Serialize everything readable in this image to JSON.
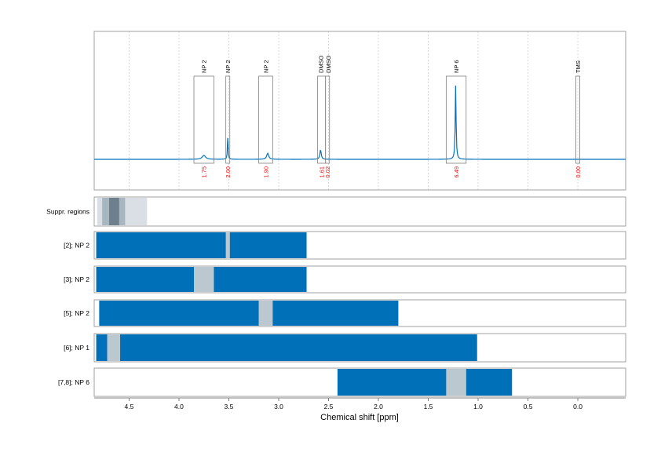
{
  "chart_data": {
    "type": "nmr-spectrum-with-range-bars",
    "xlabel": "Chemical shift [ppm]",
    "x_reversed": true,
    "xlim": [
      4.85,
      -0.48
    ],
    "xticks": [
      "4.5",
      "4.0",
      "3.5",
      "3.0",
      "2.5",
      "2.0",
      "1.5",
      "1.0",
      "0.5",
      "0.0"
    ],
    "xtick_values": [
      4.5,
      4.0,
      3.5,
      3.0,
      2.5,
      2.0,
      1.5,
      1.0,
      0.5,
      0.0
    ],
    "grid": "vertical-dotted",
    "colors": {
      "spectrum": "#0072BD",
      "bar": "#0070B8",
      "gap": "#BCC8D0",
      "integral": "#FF0000",
      "box": "#808080",
      "suppr_light": "#D9DFE5",
      "suppr_mid": "#A8B6C0",
      "suppr_dark": "#6E808E"
    },
    "peaks": [
      {
        "label": "NP 2",
        "ppm": 3.75,
        "height": 0.045,
        "width": 0.02,
        "integral": "1.75",
        "box": [
          3.85,
          3.65
        ]
      },
      {
        "label": "NP 2",
        "ppm": 3.51,
        "height": 0.28,
        "width": 0.004,
        "integral": "2.00",
        "box": [
          3.53,
          3.49
        ]
      },
      {
        "label": "NP 2",
        "ppm": 3.11,
        "height": 0.07,
        "width": 0.012,
        "integral": "1.90",
        "box": [
          3.2,
          3.06
        ]
      },
      {
        "label": "DMSO",
        "ppm": 2.58,
        "height": 0.11,
        "width": 0.008,
        "integral": "1.61",
        "box": [
          2.61,
          2.53
        ]
      },
      {
        "label": "DMSO",
        "ppm": 2.52,
        "height": 0.0,
        "width": 0.005,
        "integral": "0.02",
        "box": [
          2.53,
          2.49
        ]
      },
      {
        "label": "NP 6",
        "ppm": 1.225,
        "height": 0.85,
        "width": 0.005,
        "integral": "6.49",
        "box": [
          1.32,
          1.12
        ]
      },
      {
        "label": "TMS",
        "ppm": 0.0,
        "height": 0.0,
        "width": 0.005,
        "integral": "0.00",
        "box": [
          0.02,
          -0.02
        ]
      }
    ],
    "suppression": {
      "label": "Suppr. regions",
      "regions": [
        {
          "range": [
            4.82,
            4.32
          ],
          "shade": "light"
        },
        {
          "range": [
            4.77,
            4.54
          ],
          "shade": "mid"
        },
        {
          "range": [
            4.7,
            4.6
          ],
          "shade": "dark"
        }
      ]
    },
    "rows": [
      {
        "label": "[2]; NP 2",
        "segments": [
          [
            4.83,
            3.53
          ],
          [
            3.49,
            2.72
          ]
        ],
        "gaps": [
          [
            3.53,
            3.49
          ]
        ]
      },
      {
        "label": "[3]; NP 2",
        "segments": [
          [
            4.83,
            3.85
          ],
          [
            3.65,
            2.72
          ]
        ],
        "gaps": [
          [
            3.85,
            3.65
          ]
        ]
      },
      {
        "label": "[5]; NP 2",
        "segments": [
          [
            4.8,
            3.2
          ],
          [
            3.06,
            1.8
          ]
        ],
        "gaps": [
          [
            3.2,
            3.06
          ]
        ]
      },
      {
        "label": "[6]; NP 1",
        "segments": [
          [
            4.83,
            4.72
          ],
          [
            4.59,
            1.01
          ]
        ],
        "gaps": [
          [
            4.72,
            4.59
          ]
        ]
      },
      {
        "label": "[7,8]; NP 6",
        "segments": [
          [
            2.41,
            1.32
          ],
          [
            1.12,
            0.66
          ]
        ],
        "gaps": [
          [
            1.32,
            1.12
          ]
        ]
      }
    ]
  }
}
